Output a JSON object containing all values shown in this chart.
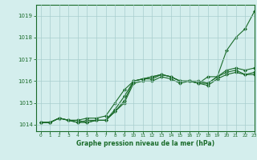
{
  "title": "Graphe pression niveau de la mer (hPa)",
  "bg_color": "#d4eeed",
  "line_color": "#1a6b2a",
  "grid_color": "#a8cece",
  "xlim": [
    -0.5,
    23
  ],
  "ylim": [
    1013.7,
    1019.5
  ],
  "yticks": [
    1014,
    1015,
    1016,
    1017,
    1018,
    1019
  ],
  "xticks": [
    0,
    1,
    2,
    3,
    4,
    5,
    6,
    7,
    8,
    9,
    10,
    11,
    12,
    13,
    14,
    15,
    16,
    17,
    18,
    19,
    20,
    21,
    22,
    23
  ],
  "series": [
    [
      1014.1,
      1014.1,
      1014.3,
      1014.2,
      1014.2,
      1014.1,
      1014.2,
      1014.2,
      1014.6,
      1015.0,
      1015.9,
      1016.0,
      1016.0,
      1016.2,
      1016.1,
      1015.9,
      1016.0,
      1015.9,
      1016.2,
      1016.2,
      1017.4,
      1018.0,
      1018.4,
      1019.2
    ],
    [
      1014.1,
      1014.1,
      1014.3,
      1014.2,
      1014.1,
      1014.1,
      1014.2,
      1014.2,
      1014.6,
      1015.1,
      1016.0,
      1016.1,
      1016.1,
      1016.3,
      1016.2,
      1016.0,
      1016.0,
      1015.9,
      1015.8,
      1016.1,
      1016.3,
      1016.4,
      1016.3,
      1016.3
    ],
    [
      1014.1,
      1014.1,
      1014.3,
      1014.2,
      1014.1,
      1014.2,
      1014.2,
      1014.2,
      1014.7,
      1015.3,
      1016.0,
      1016.1,
      1016.2,
      1016.3,
      1016.2,
      1016.0,
      1016.0,
      1015.9,
      1015.9,
      1016.2,
      1016.4,
      1016.5,
      1016.3,
      1016.4
    ],
    [
      1014.1,
      1014.1,
      1014.3,
      1014.2,
      1014.2,
      1014.3,
      1014.3,
      1014.4,
      1015.0,
      1015.6,
      1016.0,
      1016.1,
      1016.2,
      1016.3,
      1016.2,
      1016.0,
      1016.0,
      1016.0,
      1015.9,
      1016.2,
      1016.5,
      1016.6,
      1016.5,
      1016.6
    ]
  ]
}
